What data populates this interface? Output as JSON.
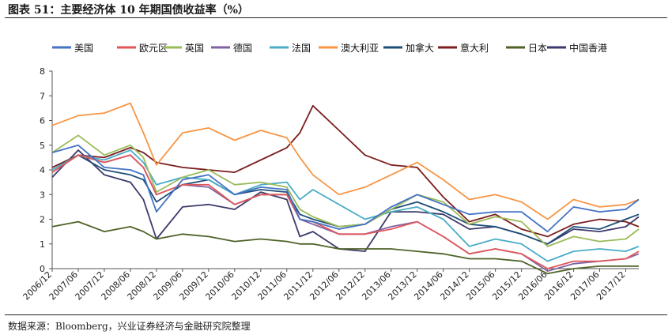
{
  "header": {
    "title": "图表 51：主要经济体 10 年期国债收益率（%）"
  },
  "footer": {
    "source": "数据来源：Bloomberg，兴业证券经济与金融研究院整理"
  },
  "chart_data": {
    "type": "line",
    "title": "主要经济体 10 年期国债收益率（%）",
    "xlabel": "",
    "ylabel": "",
    "ylim": [
      0,
      8
    ],
    "yticks": [
      0,
      1,
      2,
      3,
      4,
      5,
      6,
      7,
      8
    ],
    "xlim": [
      "2006/12",
      "2018/03"
    ],
    "grid": false,
    "legend_position": "top",
    "x_ticks": [
      "2006/12",
      "2007/06",
      "2007/12",
      "2008/06",
      "2008/12",
      "2009/06",
      "2009/12",
      "2010/06",
      "2010/12",
      "2011/06",
      "2011/12",
      "2012/06",
      "2012/12",
      "2013/06",
      "2013/12",
      "2014/06",
      "2014/12",
      "2015/06",
      "2015/12",
      "2016/06",
      "2016/12",
      "2017/06",
      "2017/12"
    ],
    "x": [
      "2006/12",
      "2007/06",
      "2007/12",
      "2008/06",
      "2008/09",
      "2008/12",
      "2009/06",
      "2009/12",
      "2010/06",
      "2010/12",
      "2011/06",
      "2011/09",
      "2011/12",
      "2012/06",
      "2012/12",
      "2013/06",
      "2013/12",
      "2014/06",
      "2014/12",
      "2015/06",
      "2015/12",
      "2016/06",
      "2016/12",
      "2017/06",
      "2017/12",
      "2018/03"
    ],
    "series": [
      {
        "name": "美国",
        "color": "#4472c4",
        "values": [
          4.7,
          5.0,
          4.1,
          4.0,
          3.8,
          2.3,
          3.6,
          3.8,
          3.0,
          3.3,
          3.2,
          2.0,
          1.9,
          1.6,
          1.8,
          2.5,
          3.0,
          2.6,
          2.2,
          2.3,
          2.3,
          1.5,
          2.5,
          2.3,
          2.4,
          2.8
        ]
      },
      {
        "name": "欧元区",
        "color": "#e15759",
        "values": [
          3.9,
          4.6,
          4.3,
          4.6,
          4.1,
          3.0,
          3.4,
          3.4,
          2.6,
          3.0,
          3.0,
          2.0,
          1.9,
          1.4,
          1.4,
          1.6,
          1.9,
          1.3,
          0.6,
          0.8,
          0.6,
          0.0,
          0.3,
          0.3,
          0.4,
          0.7
        ]
      },
      {
        "name": "英国",
        "color": "#9bbb59",
        "values": [
          4.7,
          5.4,
          4.6,
          5.0,
          4.5,
          3.1,
          3.7,
          4.0,
          3.4,
          3.5,
          3.3,
          2.4,
          2.1,
          1.7,
          1.8,
          2.4,
          3.0,
          2.7,
          1.8,
          2.1,
          1.9,
          0.9,
          1.3,
          1.1,
          1.2,
          1.6
        ]
      },
      {
        "name": "德国",
        "color": "#8064a2",
        "values": [
          3.9,
          4.6,
          4.3,
          4.6,
          4.1,
          3.0,
          3.4,
          3.3,
          2.6,
          3.0,
          3.0,
          2.0,
          1.8,
          1.4,
          1.4,
          1.7,
          1.9,
          1.3,
          0.6,
          0.8,
          0.6,
          -0.1,
          0.2,
          0.3,
          0.4,
          0.6
        ]
      },
      {
        "name": "法国",
        "color": "#4bacc6",
        "values": [
          4.0,
          4.6,
          4.4,
          4.8,
          4.3,
          3.4,
          3.7,
          3.6,
          3.0,
          3.4,
          3.5,
          2.8,
          3.2,
          2.6,
          2.0,
          2.3,
          2.5,
          2.0,
          0.9,
          1.2,
          1.0,
          0.3,
          0.7,
          0.8,
          0.7,
          0.9
        ]
      },
      {
        "name": "澳大利亚",
        "color": "#f79646",
        "values": [
          5.8,
          6.2,
          6.3,
          6.7,
          5.5,
          4.2,
          5.5,
          5.7,
          5.2,
          5.6,
          5.3,
          4.5,
          3.8,
          3.0,
          3.3,
          3.8,
          4.3,
          3.6,
          2.8,
          3.0,
          2.7,
          2.0,
          2.8,
          2.5,
          2.6,
          2.8
        ]
      },
      {
        "name": "加拿大",
        "color": "#1f4e79",
        "values": [
          4.0,
          4.6,
          4.0,
          3.8,
          3.6,
          2.7,
          3.4,
          3.6,
          3.0,
          3.2,
          3.1,
          2.2,
          2.0,
          1.7,
          1.8,
          2.4,
          2.7,
          2.3,
          1.8,
          1.7,
          1.4,
          1.0,
          1.7,
          1.6,
          2.0,
          2.2
        ]
      },
      {
        "name": "意大利",
        "color": "#7b1e1e",
        "values": [
          4.1,
          4.6,
          4.5,
          4.9,
          4.7,
          4.3,
          4.1,
          4.0,
          3.9,
          4.4,
          4.9,
          5.5,
          6.6,
          5.6,
          4.6,
          4.2,
          4.1,
          2.9,
          1.9,
          2.2,
          1.6,
          1.3,
          1.8,
          2.0,
          1.9,
          1.7
        ]
      },
      {
        "name": "日本",
        "color": "#4f6228",
        "values": [
          1.7,
          1.9,
          1.5,
          1.7,
          1.5,
          1.2,
          1.4,
          1.3,
          1.1,
          1.2,
          1.1,
          1.0,
          1.0,
          0.8,
          0.8,
          0.8,
          0.7,
          0.6,
          0.4,
          0.4,
          0.3,
          -0.2,
          0.0,
          0.1,
          0.1,
          0.1
        ]
      },
      {
        "name": "中国香港",
        "color": "#3b3a6b",
        "values": [
          3.7,
          4.8,
          3.8,
          3.5,
          2.8,
          1.2,
          2.5,
          2.6,
          2.4,
          3.1,
          2.8,
          1.3,
          1.5,
          0.8,
          0.7,
          2.3,
          2.3,
          2.2,
          1.6,
          1.7,
          1.4,
          1.0,
          1.6,
          1.5,
          1.7,
          2.1
        ]
      }
    ]
  }
}
